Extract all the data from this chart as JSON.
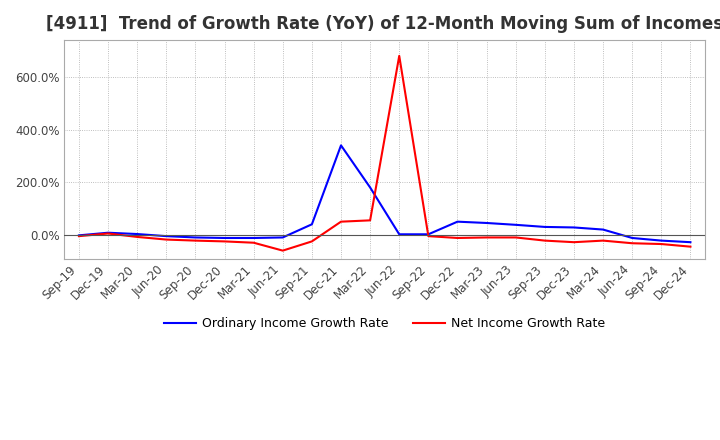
{
  "title": "[4911]  Trend of Growth Rate (YoY) of 12-Month Moving Sum of Incomes",
  "legend_labels": [
    "Ordinary Income Growth Rate",
    "Net Income Growth Rate"
  ],
  "line_colors": [
    "blue",
    "red"
  ],
  "x_labels": [
    "Sep-19",
    "Dec-19",
    "Mar-20",
    "Jun-20",
    "Sep-20",
    "Dec-20",
    "Mar-21",
    "Jun-21",
    "Sep-21",
    "Dec-21",
    "Mar-22",
    "Jun-22",
    "Sep-22",
    "Dec-22",
    "Mar-23",
    "Jun-23",
    "Sep-23",
    "Dec-23",
    "Mar-24",
    "Jun-24",
    "Sep-24",
    "Dec-24"
  ],
  "ordinary_income": [
    -0.02,
    0.08,
    0.03,
    -0.05,
    -0.1,
    -0.12,
    -0.12,
    -0.1,
    0.4,
    3.4,
    1.8,
    0.02,
    0.02,
    0.5,
    0.45,
    0.38,
    0.3,
    0.28,
    0.2,
    -0.12,
    -0.22,
    -0.28
  ],
  "net_income": [
    -0.05,
    0.05,
    -0.08,
    -0.18,
    -0.22,
    -0.25,
    -0.3,
    -0.6,
    -0.25,
    0.5,
    0.55,
    6.8,
    -0.05,
    -0.12,
    -0.1,
    -0.1,
    -0.22,
    -0.28,
    -0.22,
    -0.32,
    -0.35,
    -0.45
  ],
  "ylim_min": -0.9,
  "ylim_max": 7.4,
  "ytick_vals": [
    0.0,
    2.0,
    4.0,
    6.0
  ],
  "ytick_labels": [
    "0.0%",
    "200.0%",
    "400.0%",
    "600.0%"
  ],
  "background_color": "#ffffff",
  "grid_color": "#aaaaaa",
  "title_fontsize": 12,
  "tick_fontsize": 8.5
}
